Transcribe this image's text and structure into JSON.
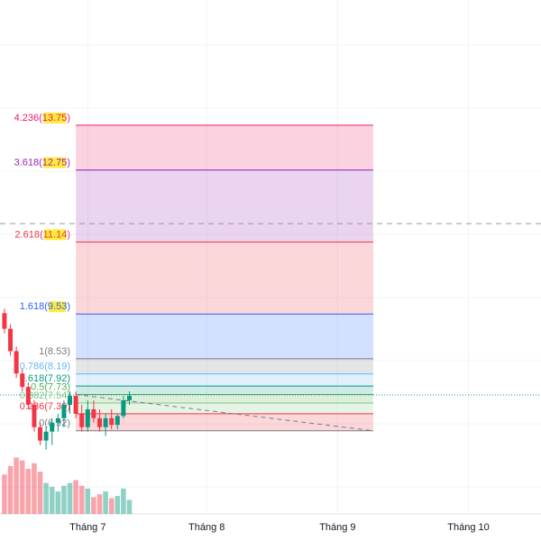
{
  "chart_data": {
    "type": "candlestick",
    "xlim": [
      -0.75,
      90.2
    ],
    "ylim": [
      5.06,
      16.55
    ],
    "xticks": [
      {
        "value": 14,
        "label": "Tháng 7"
      },
      {
        "value": 34,
        "label": "Tháng 8"
      },
      {
        "value": 56,
        "label": "Tháng 9"
      },
      {
        "value": 78,
        "label": "Tháng 10"
      }
    ],
    "open": [
      9.55,
      9.2,
      8.7,
      8.2,
      7.9,
      7.5,
      7.0,
      6.7,
      6.9,
      7.1,
      7.2,
      7.5,
      7.7,
      7.3,
      7.0,
      7.4,
      7.2,
      7.0,
      7.2,
      7.05,
      7.25,
      7.6
    ],
    "high": [
      9.65,
      9.3,
      8.8,
      8.3,
      8.0,
      7.6,
      7.1,
      7.0,
      7.2,
      7.3,
      7.6,
      7.8,
      7.8,
      7.5,
      7.6,
      7.6,
      7.4,
      7.3,
      7.4,
      7.3,
      7.7,
      7.8
    ],
    "low": [
      9.1,
      8.6,
      8.1,
      7.8,
      7.4,
      6.9,
      6.6,
      6.5,
      6.6,
      6.9,
      7.0,
      7.3,
      7.2,
      6.9,
      6.9,
      7.1,
      6.9,
      6.8,
      6.95,
      6.95,
      7.2,
      7.5
    ],
    "close": [
      9.2,
      8.7,
      8.2,
      7.9,
      7.5,
      7.0,
      6.7,
      6.9,
      7.1,
      7.2,
      7.5,
      7.7,
      7.3,
      7.0,
      7.4,
      7.2,
      7.0,
      7.2,
      7.05,
      7.25,
      7.6,
      7.7
    ],
    "volume": [
      70,
      85,
      100,
      95,
      80,
      90,
      75,
      55,
      48,
      40,
      50,
      55,
      60,
      50,
      45,
      30,
      35,
      40,
      28,
      32,
      45,
      25
    ],
    "vlim": [
      0,
      160
    ],
    "up_color": "#089981",
    "down_color": "#f23645",
    "fib_x": [
      12,
      62
    ],
    "levels": [
      {
        "ratio": 4.236,
        "price": 13.75,
        "label": "(13.75)",
        "color": "#e91e63",
        "highlight": true
      },
      {
        "ratio": 3.618,
        "price": 12.75,
        "label": "(12.75)",
        "color": "#9c27b0",
        "highlight": true
      },
      {
        "ratio": 2.618,
        "price": 11.14,
        "label": "(11.14)",
        "color": "#f23645",
        "highlight": true
      },
      {
        "ratio": 1.618,
        "price": 9.53,
        "label": "(9.53)",
        "color": "#2962ff",
        "highlight": true
      },
      {
        "ratio": 1,
        "price": 8.53,
        "label": "(8.53)",
        "color": "#787b86",
        "highlight": false
      },
      {
        "ratio": 0.786,
        "price": 8.19,
        "label": "(8.19)",
        "color": "#64b5f6",
        "highlight": false
      },
      {
        "ratio": 0.618,
        "price": 7.92,
        "label": "(7.92)",
        "color": "#089981",
        "highlight": false
      },
      {
        "ratio": 0.5,
        "price": 7.73,
        "label": "(7.73)",
        "color": "#4caf50",
        "highlight": false
      },
      {
        "ratio": 0.382,
        "price": 7.54,
        "label": "(7.54)",
        "color": "#81c784",
        "highlight": false
      },
      {
        "ratio": 0.236,
        "price": 7.3,
        "label": "(7.30)",
        "color": "#f23645",
        "highlight": false
      },
      {
        "ratio": 0,
        "price": 6.92,
        "label": "(6.92)",
        "color": "#787b86",
        "highlight": false
      }
    ],
    "alert_line": 11.55,
    "last_price": 7.72
  }
}
